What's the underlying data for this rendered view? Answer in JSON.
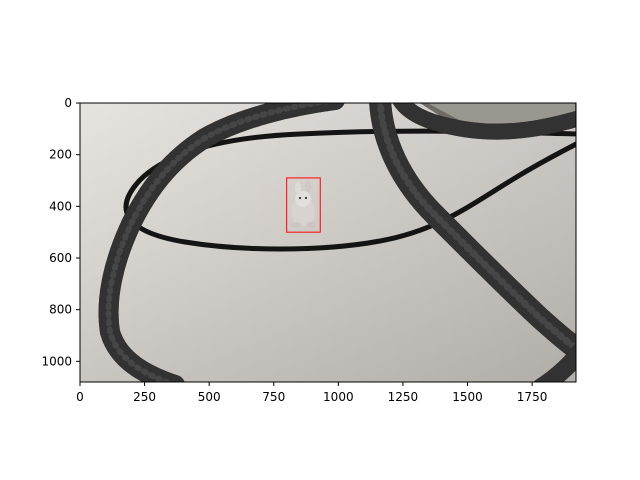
{
  "figure": {
    "x_ticks": [
      "0",
      "250",
      "500",
      "750",
      "1000",
      "1250",
      "1500",
      "1750"
    ],
    "y_ticks": [
      "0",
      "200",
      "400",
      "600",
      "800",
      "1000"
    ],
    "colors": {
      "background": "#ffffff",
      "table_surface": "#d9d5cf",
      "cable": "#161616",
      "bbox": "#ff0000",
      "axis": "#000000"
    }
  },
  "chart_data": {
    "type": "image",
    "x_range": [
      0,
      1920
    ],
    "y_range": [
      1080,
      0
    ],
    "x_tick_values": [
      0,
      250,
      500,
      750,
      1000,
      1250,
      1500,
      1750
    ],
    "y_tick_values": [
      0,
      200,
      400,
      600,
      800,
      1000
    ],
    "image_size": [
      1920,
      1080
    ],
    "annotation": {
      "type": "bounding_box",
      "object": "toy-rabbit",
      "x_min": 800,
      "y_min": 290,
      "x_max": 930,
      "y_max": 500
    }
  }
}
